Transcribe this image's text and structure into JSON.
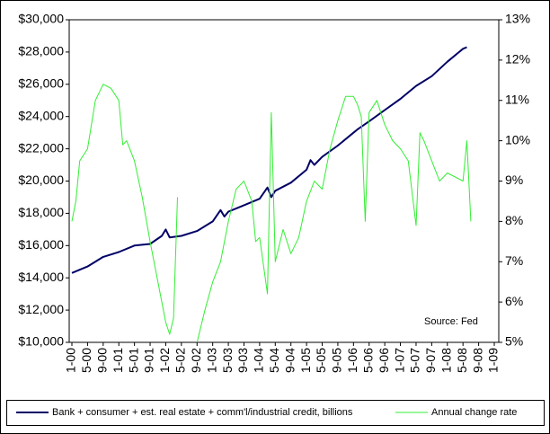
{
  "chart_data": {
    "type": "line",
    "xlim": [
      "2000-01",
      "2009-01"
    ],
    "xticks": [
      {
        "value": "2000-01",
        "label": "1-00"
      },
      {
        "value": "2000-05",
        "label": "5-00"
      },
      {
        "value": "2000-09",
        "label": "9-00"
      },
      {
        "value": "2001-01",
        "label": "1-01"
      },
      {
        "value": "2001-05",
        "label": "5-01"
      },
      {
        "value": "2001-09",
        "label": "9-01"
      },
      {
        "value": "2002-01",
        "label": "1-02"
      },
      {
        "value": "2002-05",
        "label": "5-02"
      },
      {
        "value": "2002-09",
        "label": "9-02"
      },
      {
        "value": "2003-01",
        "label": "1-03"
      },
      {
        "value": "2003-05",
        "label": "5-03"
      },
      {
        "value": "2003-09",
        "label": "9-03"
      },
      {
        "value": "2004-01",
        "label": "1-04"
      },
      {
        "value": "2004-05",
        "label": "5-04"
      },
      {
        "value": "2004-09",
        "label": "9-04"
      },
      {
        "value": "2005-01",
        "label": "1-05"
      },
      {
        "value": "2005-05",
        "label": "5-05"
      },
      {
        "value": "2005-09",
        "label": "9-05"
      },
      {
        "value": "2006-01",
        "label": "1-06"
      },
      {
        "value": "2006-05",
        "label": "5-06"
      },
      {
        "value": "2006-09",
        "label": "9-06"
      },
      {
        "value": "2007-01",
        "label": "1-07"
      },
      {
        "value": "2007-05",
        "label": "5-07"
      },
      {
        "value": "2007-09",
        "label": "9-07"
      },
      {
        "value": "2008-01",
        "label": "1-08"
      },
      {
        "value": "2008-05",
        "label": "5-08"
      },
      {
        "value": "2008-09",
        "label": "9-08"
      },
      {
        "value": "2009-01",
        "label": "1-09"
      }
    ],
    "ylim": [
      10000,
      30000
    ],
    "yticks": [
      {
        "value": 10000,
        "label": "$10,000"
      },
      {
        "value": 12000,
        "label": "$12,000"
      },
      {
        "value": 14000,
        "label": "$14,000"
      },
      {
        "value": 16000,
        "label": "$16,000"
      },
      {
        "value": 18000,
        "label": "$18,000"
      },
      {
        "value": 20000,
        "label": "$20,000"
      },
      {
        "value": 22000,
        "label": "$22,000"
      },
      {
        "value": 24000,
        "label": "$24,000"
      },
      {
        "value": 26000,
        "label": "$26,000"
      },
      {
        "value": 28000,
        "label": "$28,000"
      },
      {
        "value": 30000,
        "label": "$30,000"
      }
    ],
    "y2lim": [
      5,
      13
    ],
    "y2ticks": [
      {
        "value": 5,
        "label": "5%"
      },
      {
        "value": 6,
        "label": "6%"
      },
      {
        "value": 7,
        "label": "7%"
      },
      {
        "value": 8,
        "label": "8%"
      },
      {
        "value": 9,
        "label": "9%"
      },
      {
        "value": 10,
        "label": "10%"
      },
      {
        "value": 11,
        "label": "11%"
      },
      {
        "value": 12,
        "label": "12%"
      },
      {
        "value": 13,
        "label": "13%"
      }
    ],
    "annotation": "Source: Fed",
    "series": [
      {
        "name": "Bank + consumer + est. real estate + comm'l/industrial credit, billions",
        "color": "#000066",
        "x": [
          "2000-01",
          "2000-05",
          "2000-09",
          "2001-01",
          "2001-05",
          "2001-09",
          "2001-12",
          "2002-01",
          "2002-02",
          "2002-05",
          "2002-09",
          "2003-01",
          "2003-03",
          "2003-04",
          "2003-05",
          "2003-09",
          "2004-01",
          "2004-03",
          "2004-04",
          "2004-05",
          "2004-09",
          "2005-01",
          "2005-02",
          "2005-03",
          "2005-05",
          "2005-09",
          "2006-01",
          "2006-02",
          "2006-05",
          "2006-09",
          "2007-01",
          "2007-05",
          "2007-09",
          "2008-01",
          "2008-05",
          "2008-06"
        ],
        "values": [
          14300,
          14700,
          15300,
          15600,
          16000,
          16100,
          16600,
          17000,
          16500,
          16600,
          16900,
          17500,
          18200,
          17800,
          18100,
          18500,
          18900,
          19600,
          19000,
          19400,
          19900,
          20700,
          21300,
          21000,
          21500,
          22200,
          23000,
          23200,
          23700,
          24400,
          25100,
          25900,
          26500,
          27400,
          28200,
          28300
        ]
      },
      {
        "name": "Annual change rate",
        "color": "#33ee33",
        "axis": "y2",
        "x": [
          "2000-01",
          "2000-02",
          "2000-03",
          "2000-05",
          "2000-07",
          "2000-09",
          "2000-11",
          "2001-01",
          "2001-02",
          "2001-03",
          "2001-05",
          "2001-07",
          "2001-09",
          "2001-11",
          "2002-01",
          "2002-02",
          "2002-03",
          "2002-04",
          "2002-05",
          "2002-09",
          "2002-11",
          "2003-01",
          "2003-03",
          "2003-05",
          "2003-07",
          "2003-09",
          "2003-11",
          "2003-12",
          "2004-01",
          "2004-03",
          "2004-04",
          "2004-05",
          "2004-07",
          "2004-09",
          "2004-11",
          "2005-01",
          "2005-03",
          "2005-05",
          "2005-07",
          "2005-09",
          "2005-11",
          "2006-01",
          "2006-02",
          "2006-03",
          "2006-04",
          "2006-05",
          "2006-07",
          "2006-09",
          "2006-11",
          "2007-01",
          "2007-03",
          "2007-05",
          "2007-06",
          "2007-07",
          "2007-09",
          "2007-11",
          "2008-01",
          "2008-03",
          "2008-05",
          "2008-06",
          "2008-07"
        ],
        "values": [
          8.0,
          8.5,
          9.5,
          9.8,
          11.0,
          11.4,
          11.3,
          11.0,
          9.9,
          10.0,
          9.5,
          8.6,
          7.5,
          6.5,
          5.5,
          5.2,
          5.6,
          8.6,
          null,
          5.0,
          5.8,
          6.5,
          7.0,
          8.0,
          8.8,
          9.0,
          8.5,
          7.5,
          7.6,
          6.2,
          10.7,
          7.0,
          7.8,
          7.2,
          7.6,
          8.5,
          9.0,
          8.8,
          9.8,
          10.5,
          11.1,
          11.1,
          10.9,
          10.6,
          8.0,
          10.7,
          11.0,
          10.4,
          10.0,
          9.8,
          9.5,
          7.9,
          10.2,
          10.0,
          9.5,
          9.0,
          9.2,
          9.1,
          9.0,
          10.0,
          8.0
        ]
      }
    ]
  }
}
